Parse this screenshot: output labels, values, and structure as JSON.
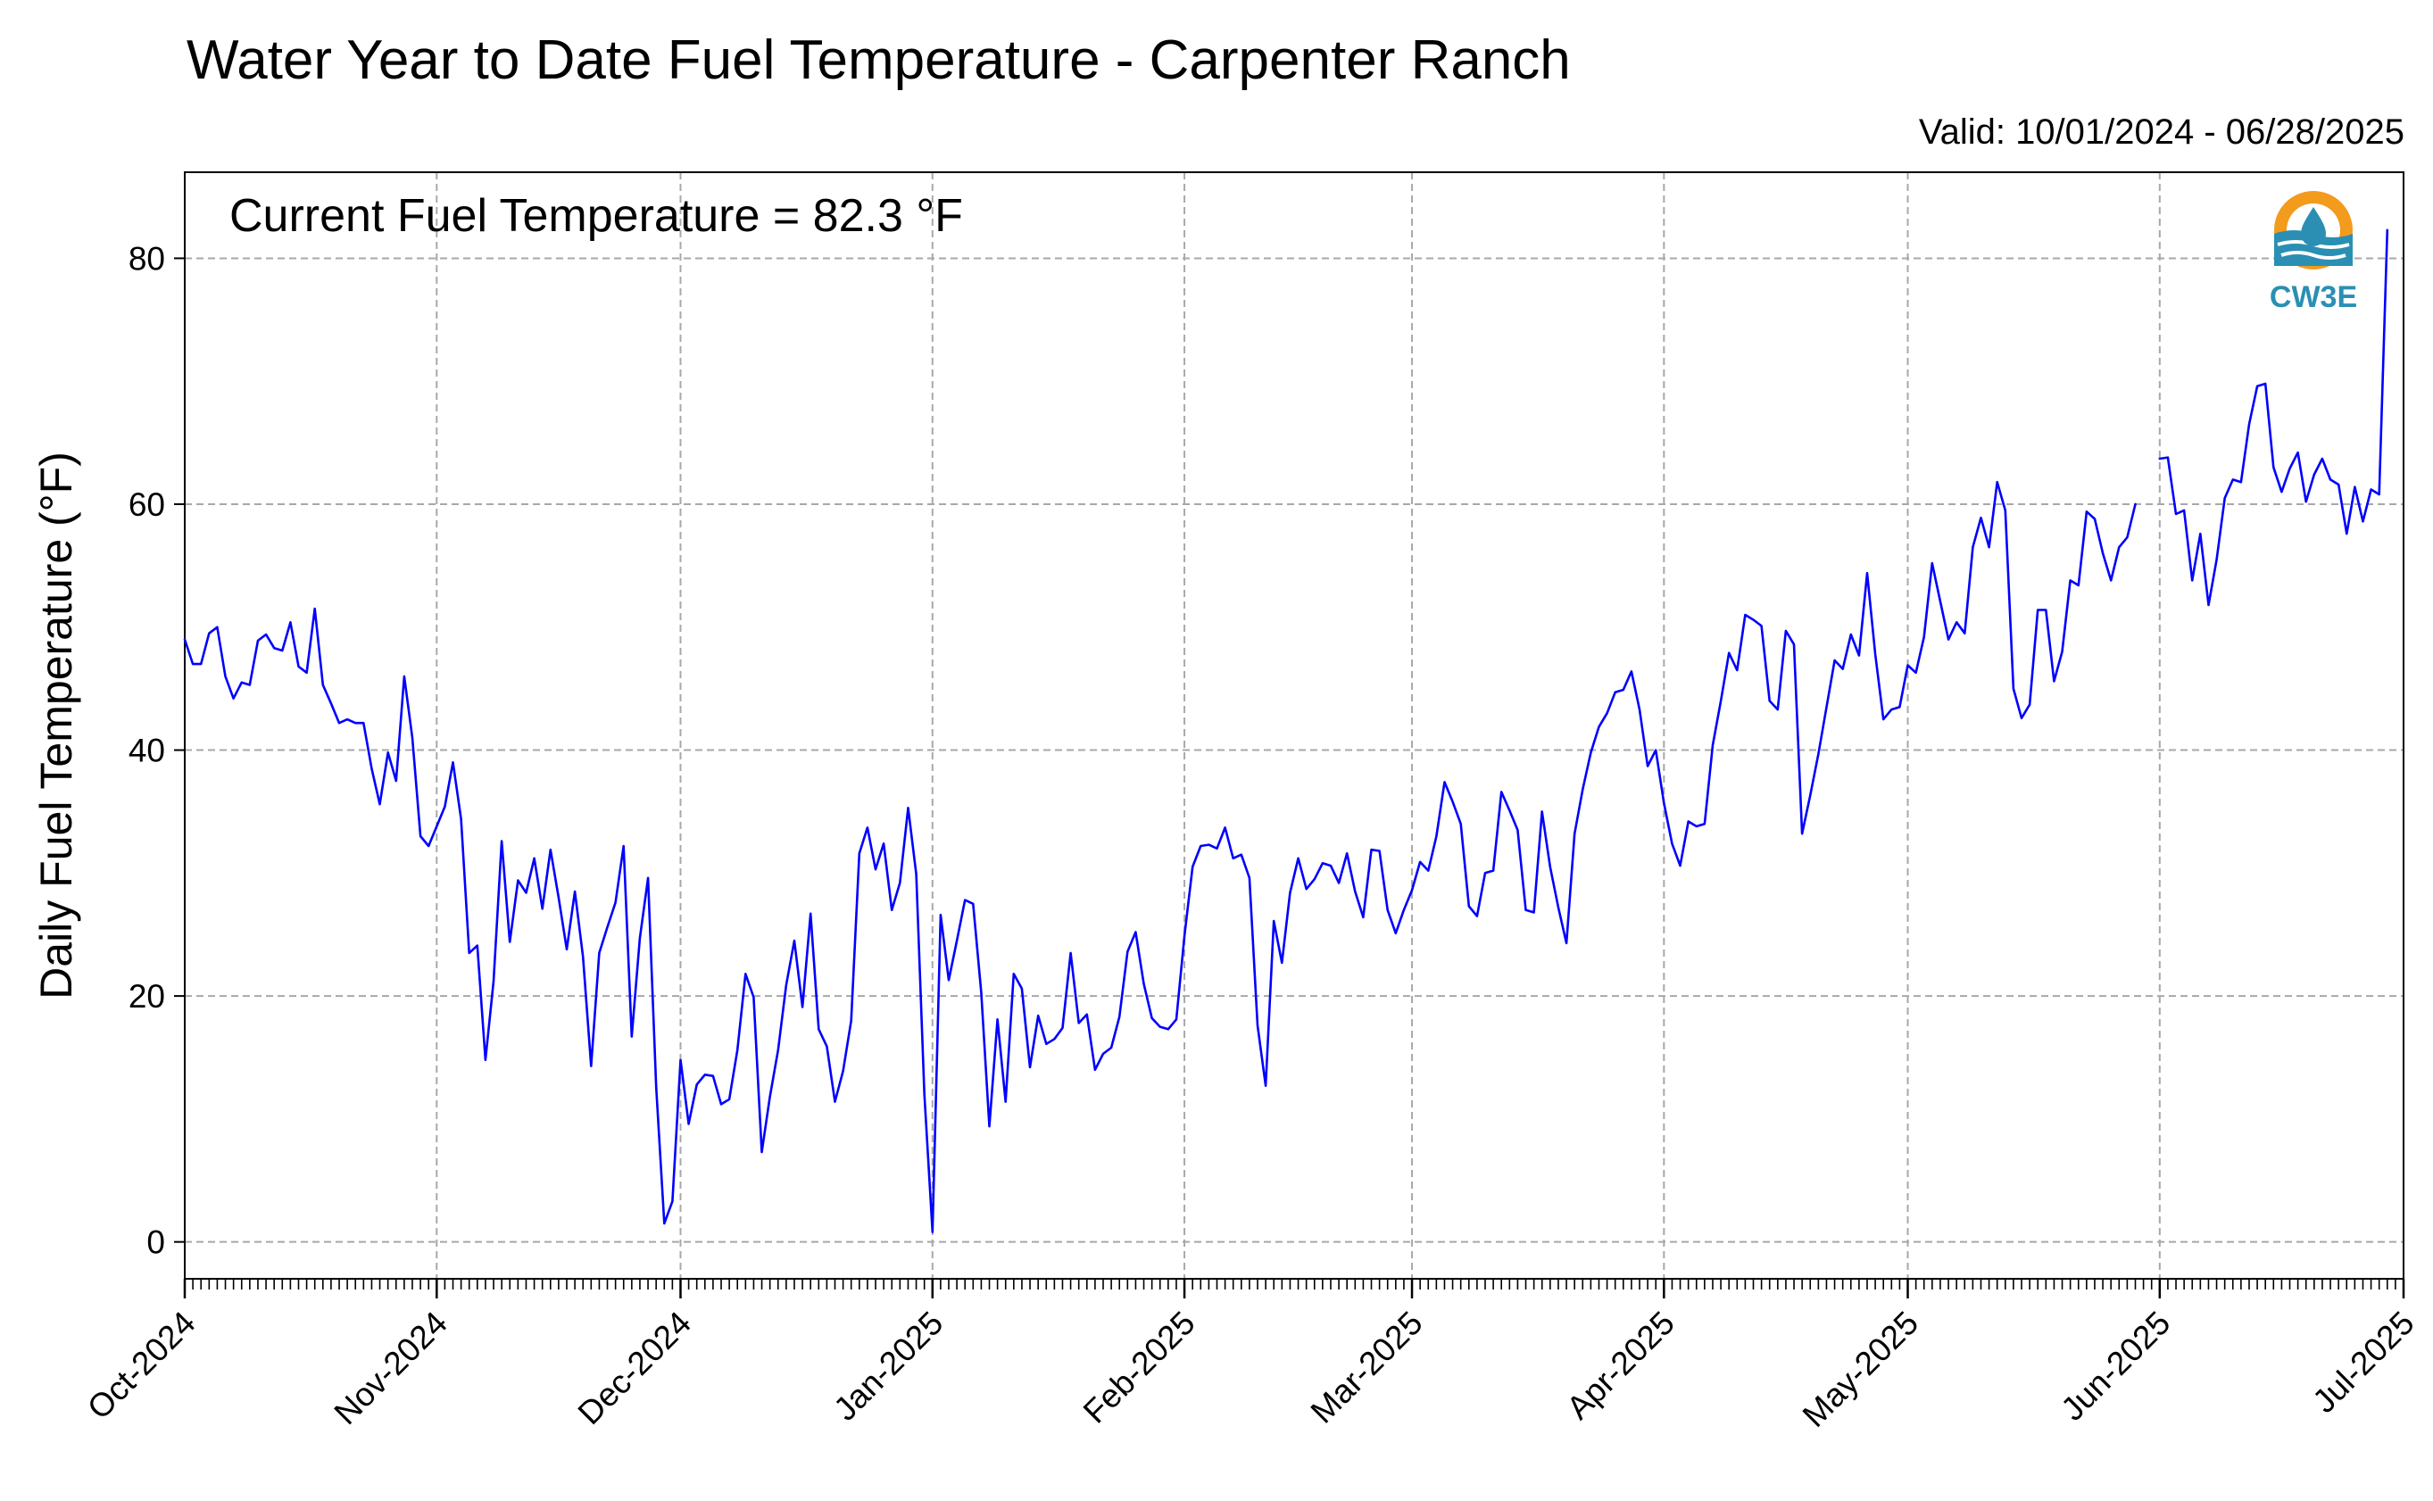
{
  "chart_data": {
    "type": "line",
    "title": "Water Year to Date Fuel Temperature - Carpenter Ranch",
    "valid_range_label": "Valid: 10/01/2024 - 06/28/2025",
    "annotation": "Current Fuel Temperature = 82.3 °F",
    "xlabel": "",
    "ylabel": "Daily Fuel Temperature (°F)",
    "ylim": [
      -3,
      87
    ],
    "yticks": [
      0,
      20,
      40,
      60,
      80
    ],
    "xlim": [
      "2024-10-01",
      "2025-07-01"
    ],
    "xticks": [
      {
        "date": "2024-10-01",
        "label": "Oct-2024"
      },
      {
        "date": "2024-11-01",
        "label": "Nov-2024"
      },
      {
        "date": "2024-12-01",
        "label": "Dec-2024"
      },
      {
        "date": "2025-01-01",
        "label": "Jan-2025"
      },
      {
        "date": "2025-02-01",
        "label": "Feb-2025"
      },
      {
        "date": "2025-03-01",
        "label": "Mar-2025"
      },
      {
        "date": "2025-04-01",
        "label": "Apr-2025"
      },
      {
        "date": "2025-05-01",
        "label": "May-2025"
      },
      {
        "date": "2025-06-01",
        "label": "Jun-2025"
      },
      {
        "date": "2025-07-01",
        "label": "Jul-2025"
      }
    ],
    "grid": true,
    "line_color": "#0000ff",
    "grid_color": "#a8a8a8",
    "series": [
      {
        "start_date": "2024-10-01",
        "values": [
          49.0,
          47.0,
          47.0,
          49.5,
          50.0,
          46.0,
          44.2,
          45.5,
          45.3,
          48.9,
          49.4,
          48.3,
          48.1,
          50.4,
          46.8,
          46.3,
          51.5,
          45.3,
          43.8,
          42.2,
          42.5,
          42.2,
          42.2,
          38.5,
          35.6,
          39.8,
          37.5,
          46.0,
          41.0,
          33.0,
          32.2,
          33.8,
          35.4,
          39.0,
          34.4,
          23.5,
          24.1,
          14.8,
          21.2,
          32.6,
          24.4,
          29.4,
          28.4,
          31.2,
          27.1,
          31.9,
          28.0,
          23.8,
          28.5,
          23.2,
          14.3,
          23.5,
          25.6,
          27.6,
          32.2,
          16.7,
          24.7,
          29.6,
          12.6,
          1.5,
          3.3,
          14.8,
          9.6,
          12.8,
          13.6,
          13.5,
          11.2,
          11.6,
          15.6,
          21.8,
          19.9,
          7.3,
          11.8,
          15.6,
          20.9,
          24.5,
          19.1,
          26.7,
          17.3,
          15.9,
          11.4,
          13.9,
          18.0,
          31.6,
          33.7,
          30.3,
          32.4,
          27.0,
          29.2,
          35.3,
          29.9,
          12.0,
          0.8,
          26.6,
          21.3,
          24.5,
          27.8,
          27.5,
          20.3,
          9.4,
          18.1,
          11.4,
          21.8,
          20.6,
          14.2,
          18.4,
          16.1,
          16.5,
          17.4,
          23.5,
          17.8,
          18.5,
          14.0,
          15.3,
          15.8,
          18.3,
          23.6,
          25.2,
          21.0,
          18.2,
          17.5,
          17.3,
          18.1,
          24.9,
          30.5,
          32.2,
          32.3,
          32.0,
          33.7,
          31.2,
          31.5,
          29.6,
          17.6,
          12.7,
          26.1,
          22.7,
          28.4,
          31.2,
          28.7,
          29.5,
          30.8,
          30.6,
          29.2,
          31.6,
          28.5,
          26.4,
          31.9,
          31.8,
          27.0,
          25.1,
          27.0,
          28.6,
          30.9,
          30.2,
          33.0,
          37.4,
          35.8,
          34.0,
          27.3,
          26.5,
          30.0,
          30.2,
          36.6,
          35.1,
          33.5,
          27.0,
          26.8,
          35.0,
          30.5,
          27.2,
          24.3,
          33.2,
          36.8,
          39.8,
          41.9,
          43.0,
          44.7,
          44.9,
          46.4,
          43.3,
          38.7,
          40.0,
          35.7,
          32.4,
          30.6,
          34.2,
          33.8,
          34.0,
          40.4,
          44.0,
          47.9,
          46.5,
          51.0,
          50.6,
          50.1,
          44.0,
          43.3,
          49.7,
          48.6,
          33.2,
          36.3,
          39.7,
          43.5,
          47.3,
          46.6,
          49.4,
          47.7,
          54.4,
          47.8,
          42.5,
          43.3,
          43.5,
          46.9,
          46.3,
          49.2,
          55.2,
          52.1,
          49.0,
          50.4,
          49.5,
          56.5,
          58.9,
          56.5,
          61.8,
          59.5,
          45.0,
          42.6,
          43.7,
          51.4,
          51.4,
          45.6,
          48.0,
          53.8,
          53.4,
          59.4,
          58.8,
          56.0,
          53.8,
          56.5,
          57.3,
          60.0
        ]
      },
      {
        "start_date": "2025-06-01",
        "values": [
          63.7,
          63.8,
          59.2,
          59.5,
          53.8,
          57.6,
          51.8,
          55.5,
          60.5,
          62.0,
          61.8,
          66.5,
          69.6,
          69.8,
          63.0,
          61.0,
          62.9,
          64.2,
          60.2,
          62.4,
          63.7,
          62.0,
          61.6,
          57.6,
          61.4,
          58.6,
          61.2,
          60.8,
          82.3
        ]
      }
    ]
  },
  "logo": {
    "text": "CW3E",
    "icon": "cw3e-logo-icon",
    "colors": {
      "ring": "#f29b1d",
      "waves": "#2a8fb3"
    }
  }
}
